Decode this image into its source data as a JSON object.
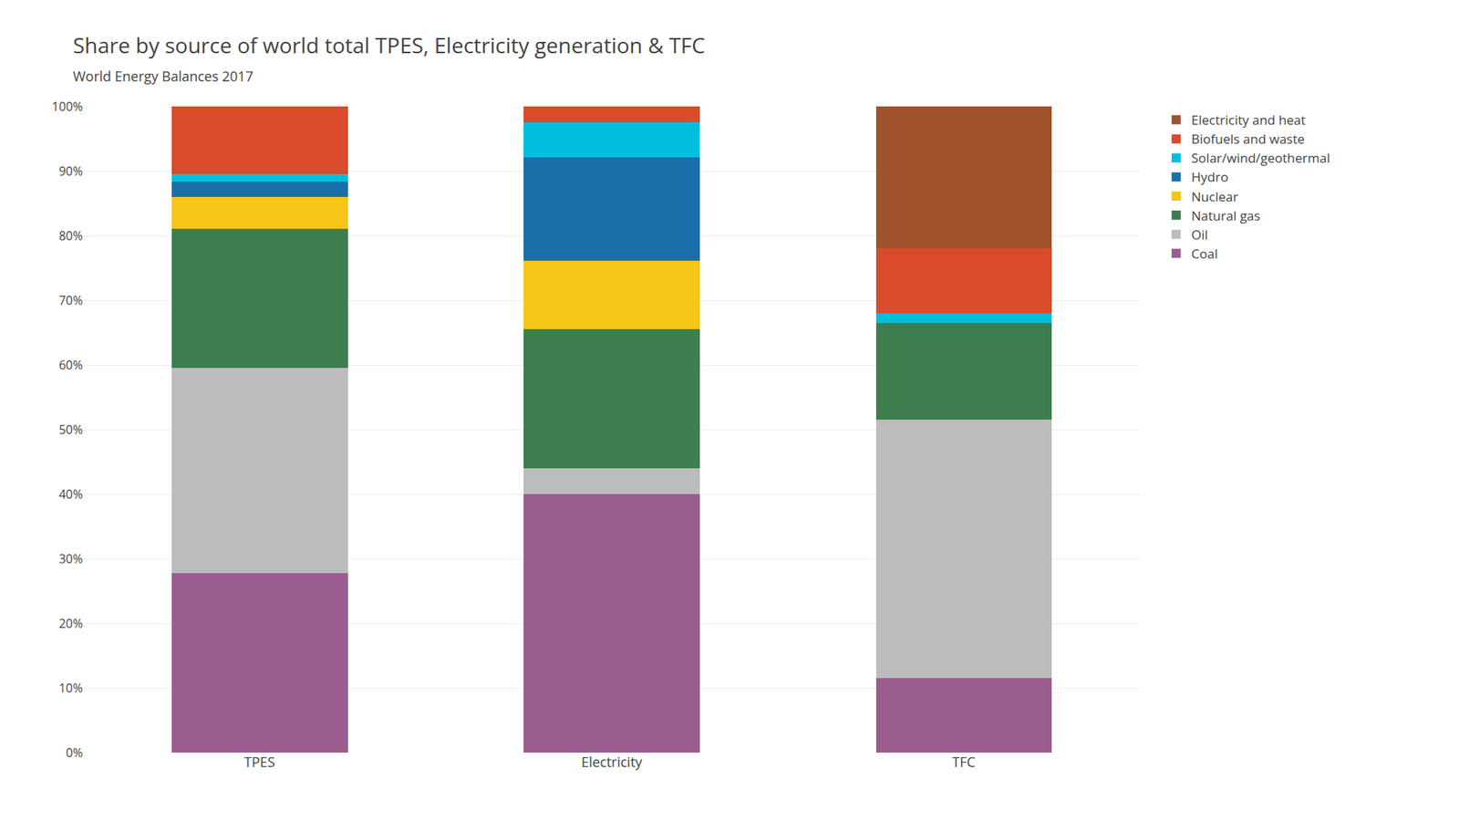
{
  "chart_data": {
    "type": "bar",
    "stacked": true,
    "title": "Share by source of world total TPES, Electricity generation & TFC",
    "subtitle": "World Energy Balances 2017",
    "categories": [
      "TPES",
      "Electricity",
      "TFC"
    ],
    "series": [
      {
        "name": "Coal",
        "color": "#9B5C8F",
        "values": [
          27.8,
          40.0,
          11.5
        ]
      },
      {
        "name": "Oil",
        "color": "#BCBCBC",
        "values": [
          31.7,
          4.0,
          40.0
        ]
      },
      {
        "name": "Natural gas",
        "color": "#3D7D4E",
        "values": [
          21.6,
          21.5,
          15.0
        ]
      },
      {
        "name": "Nuclear",
        "color": "#F5C518",
        "values": [
          4.9,
          10.6,
          0.0
        ]
      },
      {
        "name": "Hydro",
        "color": "#1B6FA8",
        "values": [
          2.3,
          16.0,
          0.0
        ]
      },
      {
        "name": "Solar/wind/geothermal",
        "color": "#00BFDE",
        "values": [
          1.2,
          5.4,
          1.5
        ]
      },
      {
        "name": "Biofuels and waste",
        "color": "#D94B2B",
        "values": [
          10.5,
          2.5,
          10.0
        ]
      },
      {
        "name": "Electricity and heat",
        "color": "#A0522D",
        "values": [
          0.0,
          0.0,
          22.0
        ]
      }
    ],
    "ylim": [
      0,
      100
    ],
    "yticks": [
      {
        "value": 0,
        "label": "0%"
      },
      {
        "value": 10,
        "label": "10%"
      },
      {
        "value": 20,
        "label": "20%"
      },
      {
        "value": 30,
        "label": "30%"
      },
      {
        "value": 40,
        "label": "40%"
      },
      {
        "value": 50,
        "label": "50%"
      },
      {
        "value": 60,
        "label": "60%"
      },
      {
        "value": 70,
        "label": "70%"
      },
      {
        "value": 80,
        "label": "80%"
      },
      {
        "value": 90,
        "label": "90%"
      },
      {
        "value": 100,
        "label": "100%"
      }
    ],
    "grid": true,
    "legend": "right"
  }
}
